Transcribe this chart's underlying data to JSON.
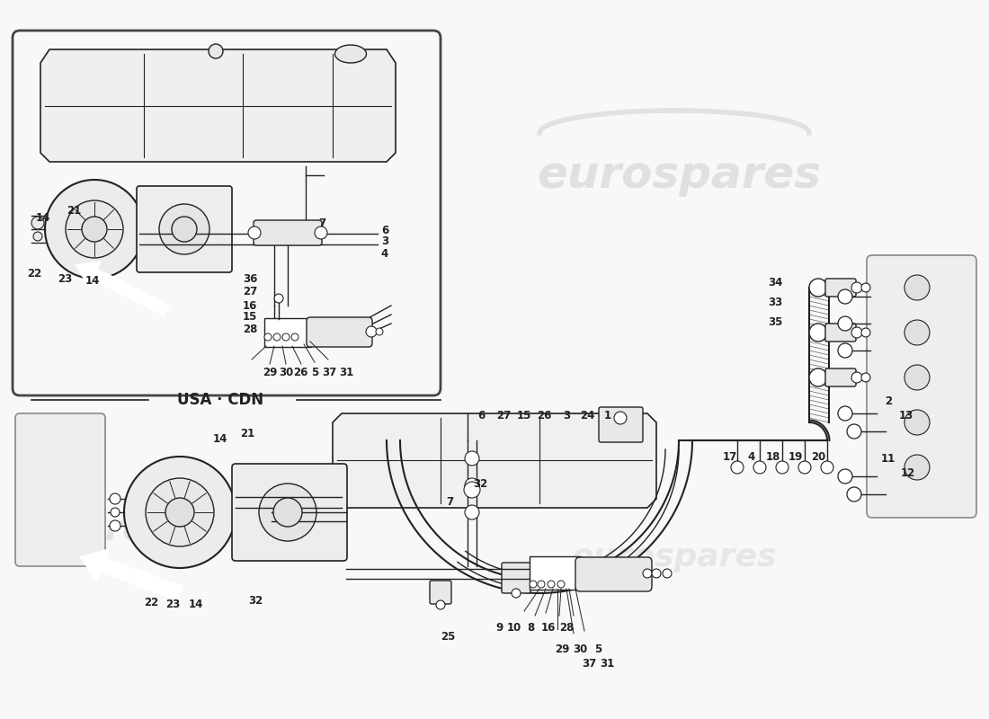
{
  "bg_color": "#f8f8f8",
  "line_color": "#222222",
  "light_line": "#888888",
  "watermark_color": "#d8d8d8",
  "label_fontsize": 8.5,
  "bold_fontsize": 10,
  "figsize": [
    11.0,
    8.0
  ],
  "dpi": 100,
  "usa_cdn": "USA · CDN",
  "watermark1": "eurospares",
  "watermark2": "euros"
}
